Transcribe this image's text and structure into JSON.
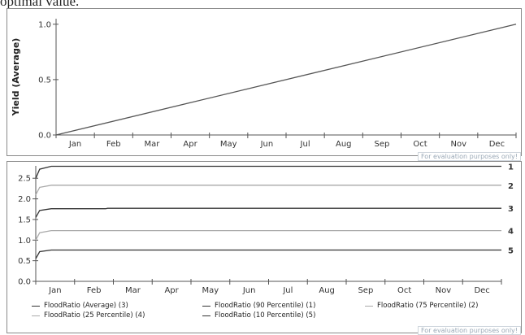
{
  "caption": "optimal value.",
  "watermark": "For evaluation purposes only!",
  "chart_data": [
    {
      "type": "line",
      "ylabel": "Yield (Average)",
      "xlabel": "",
      "categories": [
        "Jan",
        "Feb",
        "Mar",
        "Apr",
        "May",
        "Jun",
        "Jul",
        "Aug",
        "Sep",
        "Oct",
        "Nov",
        "Dec"
      ],
      "yticks": [
        "0.0",
        "0.5",
        "1.0"
      ],
      "ylim": [
        0,
        1.05
      ],
      "grid": false,
      "series": [
        {
          "x": [
            0,
            12
          ],
          "y": [
            0.0,
            1.0
          ],
          "color": "#555555"
        }
      ]
    },
    {
      "type": "line",
      "ylabel": "",
      "xlabel": "",
      "categories": [
        "Jan",
        "Feb",
        "Mar",
        "Apr",
        "May",
        "Jun",
        "Jul",
        "Aug",
        "Sep",
        "Oct",
        "Nov",
        "Dec"
      ],
      "yticks": [
        "0.0",
        "0.5",
        "1.0",
        "1.5",
        "2.0",
        "2.5"
      ],
      "ylim": [
        0,
        2.8
      ],
      "grid": false,
      "legend_position": "bottom",
      "series": [
        {
          "name": "FloodRatio (90 Percentile)",
          "label": "1",
          "color": "#333333",
          "x": [
            0,
            0.1,
            0.4,
            12
          ],
          "y": [
            2.5,
            2.72,
            2.79,
            2.79
          ]
        },
        {
          "name": "FloodRatio (75 Percentile)",
          "label": "2",
          "color": "#aaaaaa",
          "x": [
            0,
            0.1,
            0.4,
            12
          ],
          "y": [
            2.1,
            2.28,
            2.33,
            2.33
          ]
        },
        {
          "name": "FloodRatio (Average)",
          "label": "3",
          "color": "#333333",
          "x": [
            0,
            0.1,
            0.4,
            1.8,
            1.85,
            12
          ],
          "y": [
            1.55,
            1.72,
            1.76,
            1.76,
            1.77,
            1.77
          ]
        },
        {
          "name": "FloodRatio (25 Percentile)",
          "label": "4",
          "color": "#aaaaaa",
          "x": [
            0,
            0.1,
            0.4,
            12
          ],
          "y": [
            1.0,
            1.18,
            1.23,
            1.23
          ]
        },
        {
          "name": "FloodRatio (10 Percentile)",
          "label": "5",
          "color": "#333333",
          "x": [
            0,
            0.1,
            0.4,
            12
          ],
          "y": [
            0.55,
            0.72,
            0.76,
            0.76
          ]
        }
      ],
      "legend": [
        {
          "text": "FloodRatio (Average) (3)",
          "color": "#333333"
        },
        {
          "text": "FloodRatio (90 Percentile) (1)",
          "color": "#333333"
        },
        {
          "text": "FloodRatio (75 Percentile) (2)",
          "color": "#aaaaaa"
        },
        {
          "text": "FloodRatio (25 Percentile) (4)",
          "color": "#aaaaaa"
        },
        {
          "text": "FloodRatio (10 Percentile) (5)",
          "color": "#333333"
        }
      ]
    }
  ]
}
